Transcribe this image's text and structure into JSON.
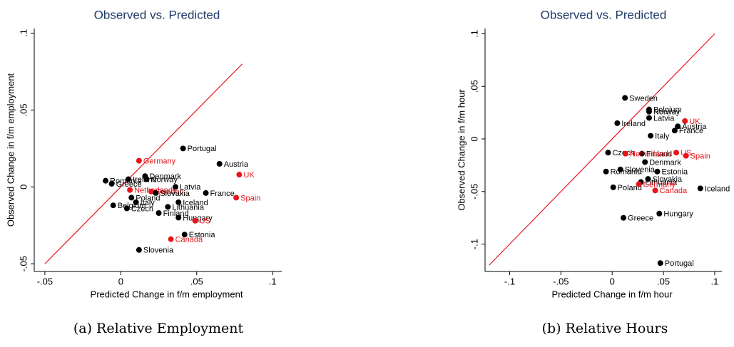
{
  "chart_data": [
    {
      "type": "scatter",
      "title": "Observed vs. Predicted",
      "caption": "(a) Relative Employment",
      "x_label": "Predicted Change in f/m employment",
      "y_label": "Observed Change in f/m employment",
      "xlim": [
        -0.057,
        0.106
      ],
      "ylim": [
        -0.055,
        0.103
      ],
      "xticks": [
        {
          "value": -0.05,
          "label": "-.05"
        },
        0,
        {
          "value": 0.05,
          "label": ".05"
        },
        {
          "value": 0.1,
          "label": ".1"
        }
      ],
      "yticks": [
        {
          "value": -0.05,
          "label": "-.05"
        },
        0,
        {
          "value": 0.05,
          "label": ".05"
        },
        {
          "value": 0.1,
          "label": ".1"
        }
      ],
      "reference_line": [
        -0.05,
        0.08
      ],
      "line_color": "#e8141a",
      "labels": [
        "Portugal",
        "Austria",
        "UK",
        "Spain",
        "France",
        "Germany",
        "Denmark",
        "Norway",
        "Ireland",
        "Romania",
        "Greece",
        "Netherlands",
        "Sweden",
        "Latvia",
        "Slovakia",
        "Poland",
        "Italy",
        "Iceland",
        "Lithuania",
        "Finland",
        "Belgium",
        "Czech",
        "Hungary",
        "US",
        "Estonia",
        "Canada",
        "Slovenia"
      ],
      "x": [
        0.041,
        0.065,
        0.078,
        0.076,
        0.056,
        0.012,
        0.016,
        0.017,
        0.005,
        -0.01,
        -0.006,
        0.006,
        0.02,
        0.036,
        0.023,
        0.007,
        0.01,
        0.038,
        0.031,
        0.025,
        -0.005,
        0.004,
        0.038,
        0.049,
        0.042,
        0.033,
        0.012
      ],
      "y": [
        0.025,
        0.015,
        0.008,
        -0.007,
        -0.004,
        0.017,
        0.007,
        0.005,
        0.005,
        0.004,
        0.002,
        -0.002,
        -0.003,
        0,
        -0.004,
        -0.007,
        -0.01,
        -0.01,
        -0.013,
        -0.017,
        -0.012,
        -0.014,
        -0.02,
        -0.022,
        -0.031,
        -0.034,
        -0.041
      ],
      "colors": [
        "#000",
        "#000",
        "#e8141a",
        "#e8141a",
        "#000",
        "#e8141a",
        "#000",
        "#000",
        "#000",
        "#000",
        "#000",
        "#e8141a",
        "#e8141a",
        "#000",
        "#000",
        "#000",
        "#000",
        "#000",
        "#000",
        "#000",
        "#000",
        "#000",
        "#000",
        "#e8141a",
        "#000",
        "#e8141a",
        "#000"
      ]
    },
    {
      "type": "scatter",
      "title": "Observed vs. Predicted",
      "caption": "(b) Relative Hours",
      "x_label": "Predicted Change in f/m hour",
      "y_label": "Observed Change in f/m hour",
      "xlim": [
        -0.124,
        0.107
      ],
      "ylim": [
        -0.126,
        0.105
      ],
      "xticks": [
        {
          "value": -0.1,
          "label": "-.1"
        },
        {
          "value": -0.05,
          "label": "-.05"
        },
        0,
        {
          "value": 0.05,
          "label": ".05"
        },
        {
          "value": 0.1,
          "label": ".1"
        }
      ],
      "yticks": [
        {
          "value": -0.1,
          "label": "-.1"
        },
        {
          "value": -0.05,
          "label": "-.05"
        },
        0,
        {
          "value": 0.05,
          "label": ".05"
        },
        {
          "value": 0.1,
          "label": ".1"
        }
      ],
      "reference_line": [
        -0.12,
        0.1
      ],
      "line_color": "#e8141a",
      "labels": [
        "Sweden",
        "Belgium",
        "Norway",
        "Latvia",
        "UK",
        "Austria",
        "France",
        "Ireland",
        "Italy",
        "Czech",
        "Finland",
        "Netherlands",
        "US",
        "Spain",
        "Denmark",
        "Slovenia",
        "Romania",
        "Estonia",
        "Slovakia",
        "Poland",
        "Lithuania",
        "Germany",
        "Canada",
        "Iceland",
        "Greece",
        "Hungary",
        "Portugal"
      ],
      "x": [
        0.0125,
        0.036,
        0.036,
        0.036,
        0.071,
        0.064,
        0.061,
        0.005,
        0.0375,
        -0.004,
        0.029,
        0.013,
        0.0625,
        0.072,
        0.032,
        0.008,
        -0.006,
        0.044,
        0.035,
        0.001,
        0.028,
        0.026,
        0.042,
        0.086,
        0.011,
        0.046,
        0.047
      ],
      "y": [
        0.039,
        0.028,
        0.026,
        0.02,
        0.017,
        0.012,
        0.008,
        0.015,
        0.003,
        -0.013,
        -0.014,
        -0.014,
        -0.013,
        -0.016,
        -0.022,
        -0.029,
        -0.031,
        -0.031,
        -0.038,
        -0.046,
        -0.041,
        -0.043,
        -0.049,
        -0.047,
        -0.075,
        -0.071,
        -0.118
      ],
      "colors": [
        "#000",
        "#000",
        "#000",
        "#000",
        "#e8141a",
        "#000",
        "#000",
        "#000",
        "#000",
        "#000",
        "#000",
        "#e8141a",
        "#e8141a",
        "#e8141a",
        "#000",
        "#000",
        "#000",
        "#000",
        "#000",
        "#000",
        "#000",
        "#e8141a",
        "#e8141a",
        "#000",
        "#000",
        "#000",
        "#000"
      ]
    }
  ]
}
